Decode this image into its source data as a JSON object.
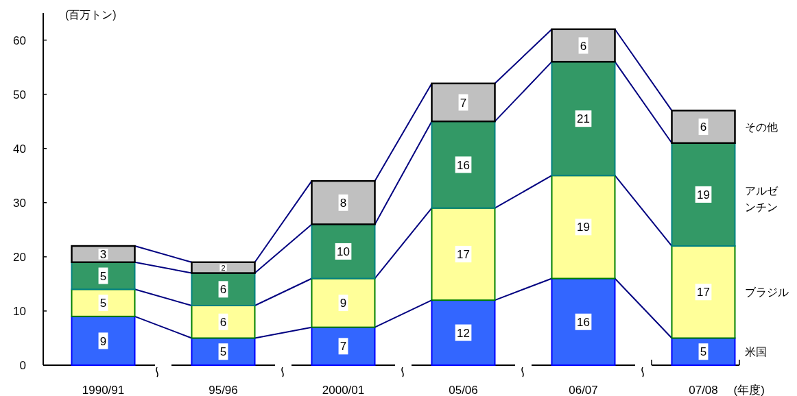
{
  "chart_data": {
    "type": "bar",
    "stacked": true,
    "ylabel": "(百万トン)",
    "xlabel": "(年度)",
    "categories": [
      "1990/91",
      "95/96",
      "2000/01",
      "05/06",
      "06/07",
      "07/08"
    ],
    "ylim": [
      0,
      65
    ],
    "yticks": [
      0,
      10,
      20,
      30,
      40,
      50,
      60
    ],
    "grid": false,
    "data_labels": true,
    "series": [
      {
        "name": "米国",
        "color": "#3366ff",
        "values": [
          9,
          5,
          7,
          12,
          16,
          5
        ]
      },
      {
        "name": "ブラジル",
        "color": "#ffff99",
        "values": [
          5,
          6,
          9,
          17,
          19,
          17
        ]
      },
      {
        "name": "アルゼンチン",
        "color": "#339966",
        "values": [
          5,
          6,
          10,
          16,
          21,
          19
        ]
      },
      {
        "name": "その他",
        "color": "#c0c0c0",
        "values": [
          3,
          2,
          8,
          7,
          6,
          6
        ]
      }
    ]
  }
}
